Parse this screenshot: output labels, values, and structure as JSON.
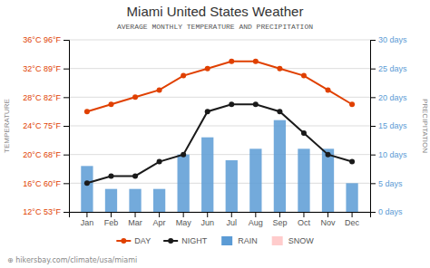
{
  "chart_data": {
    "type": "bar",
    "title": "Miami United States Weather",
    "subtitle": "AVERAGE MONTHLY TEMPERATURE AND PRECIPITATION",
    "categories": [
      "Jan",
      "Feb",
      "Mar",
      "Apr",
      "May",
      "Jun",
      "Jul",
      "Aug",
      "Sep",
      "Oct",
      "Nov",
      "Dec"
    ],
    "series": [
      {
        "name": "DAY",
        "type": "line",
        "color": "#e04000",
        "marker": "circle",
        "values": [
          26,
          27,
          28,
          29,
          31,
          32,
          33,
          33,
          32,
          31,
          29,
          27
        ]
      },
      {
        "name": "NIGHT",
        "type": "line",
        "color": "#1a1a1a",
        "marker": "circle",
        "values": [
          16,
          17,
          17,
          19,
          20,
          26,
          27,
          27,
          26,
          23,
          20,
          19
        ]
      },
      {
        "name": "RAIN",
        "type": "bar",
        "axis": "y2",
        "color": "#5b9bd5",
        "values": [
          8,
          4,
          4,
          4,
          10,
          13,
          9,
          11,
          16,
          11,
          11,
          5
        ]
      },
      {
        "name": "SNOW",
        "type": "bar",
        "axis": "y2",
        "color": "#ffcccc",
        "values": [
          null,
          null,
          null,
          null,
          null,
          null,
          null,
          null,
          null,
          null,
          null,
          null
        ]
      }
    ],
    "y_label": "TEMPERATURE",
    "y2_label": "PRECIPITATION",
    "ylim": [
      12,
      36
    ],
    "yticks": [
      {
        "value": 12,
        "label": "12°C 53°F"
      },
      {
        "value": 16,
        "label": "16°C 60°F"
      },
      {
        "value": 20,
        "label": "20°C 68°F"
      },
      {
        "value": 24,
        "label": "24°C 75°F"
      },
      {
        "value": 28,
        "label": "28°C 82°F"
      },
      {
        "value": 32,
        "label": "32°C 89°F"
      },
      {
        "value": 36,
        "label": "36°C 96°F"
      }
    ],
    "y2lim": [
      0,
      30
    ],
    "y2ticks": [
      {
        "value": 0,
        "label": "0 days"
      },
      {
        "value": 5,
        "label": "5 days"
      },
      {
        "value": 10,
        "label": "10 days"
      },
      {
        "value": 15,
        "label": "15 days"
      },
      {
        "value": 20,
        "label": "20 days"
      },
      {
        "value": 25,
        "label": "25 days"
      },
      {
        "value": 30,
        "label": "30 days"
      }
    ],
    "grid": true,
    "legend": "bottom",
    "annotations": [
      "⊕ hikersbay.com/climate/usa/miami"
    ]
  }
}
